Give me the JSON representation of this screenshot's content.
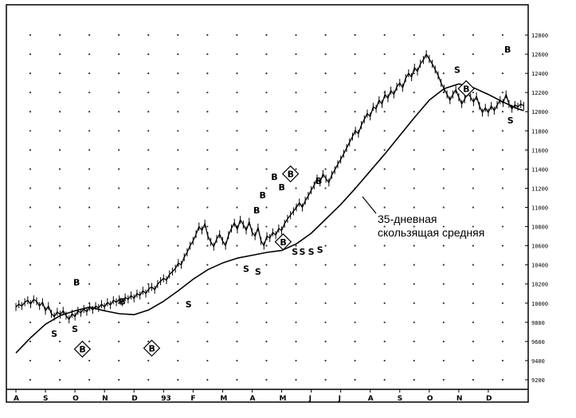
{
  "chart_data": {
    "type": "line",
    "title": "",
    "xlabel": "",
    "ylabel": "",
    "x_tick_labels": [
      "A",
      "S",
      "O",
      "N",
      "D",
      "93",
      "F",
      "M",
      "A",
      "M",
      "J",
      "J",
      "A",
      "S",
      "O",
      "N",
      "D"
    ],
    "y_tick_labels": [
      "9200",
      "9400",
      "9600",
      "9800",
      "10000",
      "10200",
      "10400",
      "10600",
      "10800",
      "11000",
      "11200",
      "11400",
      "11600",
      "11800",
      "12000",
      "12200",
      "12400",
      "12600",
      "12800"
    ],
    "ylim": [
      9100,
      12900
    ],
    "grid": true,
    "annotation": {
      "text_lines": [
        "35-дневная",
        "скользящая средняя"
      ]
    },
    "series": [
      {
        "role": "price",
        "points": [
          [
            0,
            9960
          ],
          [
            0.1,
            9990
          ],
          [
            0.2,
            9970
          ],
          [
            0.3,
            10010
          ],
          [
            0.4,
            10030
          ],
          [
            0.5,
            9990
          ],
          [
            0.6,
            10040
          ],
          [
            0.7,
            10020
          ],
          [
            0.8,
            9970
          ],
          [
            0.9,
            10010
          ],
          [
            1.0,
            9920
          ],
          [
            1.1,
            9970
          ],
          [
            1.2,
            9890
          ],
          [
            1.3,
            9860
          ],
          [
            1.4,
            9910
          ],
          [
            1.5,
            9880
          ],
          [
            1.6,
            9920
          ],
          [
            1.7,
            9870
          ],
          [
            1.8,
            9830
          ],
          [
            1.9,
            9890
          ],
          [
            2.0,
            9860
          ],
          [
            2.1,
            9920
          ],
          [
            2.2,
            9900
          ],
          [
            2.3,
            9940
          ],
          [
            2.4,
            9910
          ],
          [
            2.5,
            9960
          ],
          [
            2.6,
            9930
          ],
          [
            2.7,
            9970
          ],
          [
            2.8,
            9950
          ],
          [
            2.9,
            9990
          ],
          [
            3.0,
            9960
          ],
          [
            3.1,
            10010
          ],
          [
            3.2,
            9980
          ],
          [
            3.3,
            10030
          ],
          [
            3.4,
            10010
          ],
          [
            3.5,
            10040
          ],
          [
            3.6,
            10010
          ],
          [
            3.7,
            10060
          ],
          [
            3.8,
            10040
          ],
          [
            3.9,
            10080
          ],
          [
            4.0,
            10050
          ],
          [
            4.1,
            10100
          ],
          [
            4.2,
            10080
          ],
          [
            4.3,
            10130
          ],
          [
            4.4,
            10100
          ],
          [
            4.5,
            10150
          ],
          [
            4.6,
            10170
          ],
          [
            4.7,
            10140
          ],
          [
            4.8,
            10200
          ],
          [
            4.9,
            10230
          ],
          [
            5.0,
            10260
          ],
          [
            5.1,
            10240
          ],
          [
            5.2,
            10300
          ],
          [
            5.3,
            10330
          ],
          [
            5.4,
            10360
          ],
          [
            5.5,
            10420
          ],
          [
            5.6,
            10400
          ],
          [
            5.7,
            10480
          ],
          [
            5.8,
            10530
          ],
          [
            5.9,
            10600
          ],
          [
            6.0,
            10650
          ],
          [
            6.1,
            10720
          ],
          [
            6.2,
            10800
          ],
          [
            6.3,
            10760
          ],
          [
            6.4,
            10830
          ],
          [
            6.5,
            10700
          ],
          [
            6.6,
            10640
          ],
          [
            6.7,
            10590
          ],
          [
            6.8,
            10670
          ],
          [
            6.9,
            10720
          ],
          [
            7.0,
            10650
          ],
          [
            7.1,
            10600
          ],
          [
            7.2,
            10710
          ],
          [
            7.3,
            10780
          ],
          [
            7.4,
            10840
          ],
          [
            7.5,
            10770
          ],
          [
            7.6,
            10870
          ],
          [
            7.7,
            10820
          ],
          [
            7.8,
            10760
          ],
          [
            7.9,
            10850
          ],
          [
            8.0,
            10740
          ],
          [
            8.1,
            10700
          ],
          [
            8.2,
            10790
          ],
          [
            8.3,
            10650
          ],
          [
            8.4,
            10600
          ],
          [
            8.5,
            10700
          ],
          [
            8.6,
            10680
          ],
          [
            8.7,
            10740
          ],
          [
            8.8,
            10710
          ],
          [
            8.9,
            10780
          ],
          [
            9.0,
            10760
          ],
          [
            9.1,
            10830
          ],
          [
            9.2,
            10880
          ],
          [
            9.3,
            10920
          ],
          [
            9.4,
            10960
          ],
          [
            9.5,
            11000
          ],
          [
            9.6,
            11050
          ],
          [
            9.7,
            11000
          ],
          [
            9.8,
            11070
          ],
          [
            9.9,
            11120
          ],
          [
            10.0,
            11180
          ],
          [
            10.1,
            11230
          ],
          [
            10.2,
            11300
          ],
          [
            10.3,
            11260
          ],
          [
            10.4,
            11350
          ],
          [
            10.5,
            11300
          ],
          [
            10.6,
            11260
          ],
          [
            10.7,
            11340
          ],
          [
            10.8,
            11390
          ],
          [
            10.9,
            11450
          ],
          [
            11.0,
            11500
          ],
          [
            11.1,
            11560
          ],
          [
            11.2,
            11620
          ],
          [
            11.3,
            11680
          ],
          [
            11.4,
            11740
          ],
          [
            11.5,
            11800
          ],
          [
            11.6,
            11770
          ],
          [
            11.7,
            11860
          ],
          [
            11.8,
            11920
          ],
          [
            11.9,
            11980
          ],
          [
            12.0,
            11950
          ],
          [
            12.1,
            12050
          ],
          [
            12.2,
            12030
          ],
          [
            12.3,
            12120
          ],
          [
            12.4,
            12080
          ],
          [
            12.5,
            12180
          ],
          [
            12.6,
            12140
          ],
          [
            12.7,
            12220
          ],
          [
            12.8,
            12180
          ],
          [
            12.9,
            12260
          ],
          [
            13.0,
            12300
          ],
          [
            13.1,
            12250
          ],
          [
            13.2,
            12350
          ],
          [
            13.3,
            12400
          ],
          [
            13.4,
            12360
          ],
          [
            13.5,
            12460
          ],
          [
            13.6,
            12420
          ],
          [
            13.7,
            12500
          ],
          [
            13.8,
            12540
          ],
          [
            13.9,
            12600
          ],
          [
            14.0,
            12550
          ],
          [
            14.1,
            12500
          ],
          [
            14.2,
            12440
          ],
          [
            14.3,
            12380
          ],
          [
            14.4,
            12300
          ],
          [
            14.5,
            12240
          ],
          [
            14.6,
            12180
          ],
          [
            14.7,
            12120
          ],
          [
            14.8,
            12180
          ],
          [
            14.9,
            12230
          ],
          [
            15.0,
            12150
          ],
          [
            15.1,
            12080
          ],
          [
            15.2,
            12130
          ],
          [
            15.3,
            12200
          ],
          [
            15.4,
            12150
          ],
          [
            15.5,
            12100
          ],
          [
            15.6,
            12160
          ],
          [
            15.7,
            12060
          ],
          [
            15.8,
            11990
          ],
          [
            15.9,
            12040
          ],
          [
            16.0,
            11990
          ],
          [
            16.1,
            12060
          ],
          [
            16.2,
            12010
          ],
          [
            16.3,
            12070
          ],
          [
            16.4,
            12120
          ],
          [
            16.5,
            12090
          ],
          [
            16.6,
            12180
          ],
          [
            16.7,
            12080
          ],
          [
            16.8,
            12030
          ],
          [
            16.9,
            12070
          ],
          [
            17.0,
            12050
          ],
          [
            17.1,
            12080
          ],
          [
            17.2,
            12060
          ]
        ]
      },
      {
        "role": "moving-average",
        "points": [
          [
            0,
            9480
          ],
          [
            0.5,
            9640
          ],
          [
            1.0,
            9780
          ],
          [
            1.5,
            9870
          ],
          [
            2.0,
            9920
          ],
          [
            2.5,
            9960
          ],
          [
            3.0,
            9920
          ],
          [
            3.5,
            9890
          ],
          [
            4.0,
            9880
          ],
          [
            4.5,
            9930
          ],
          [
            5.0,
            10020
          ],
          [
            5.5,
            10130
          ],
          [
            6.0,
            10250
          ],
          [
            6.5,
            10350
          ],
          [
            7.0,
            10420
          ],
          [
            7.5,
            10470
          ],
          [
            8.0,
            10500
          ],
          [
            8.5,
            10530
          ],
          [
            9.0,
            10550
          ],
          [
            9.5,
            10620
          ],
          [
            10.0,
            10730
          ],
          [
            10.5,
            10880
          ],
          [
            11.0,
            11030
          ],
          [
            11.5,
            11200
          ],
          [
            12.0,
            11380
          ],
          [
            12.5,
            11560
          ],
          [
            13.0,
            11750
          ],
          [
            13.5,
            11940
          ],
          [
            14.0,
            12120
          ],
          [
            14.5,
            12240
          ],
          [
            15.0,
            12290
          ],
          [
            15.5,
            12250
          ],
          [
            16.0,
            12180
          ],
          [
            16.5,
            12100
          ],
          [
            17.0,
            12030
          ],
          [
            17.2,
            12010
          ]
        ]
      }
    ],
    "signals": [
      {
        "label": "B",
        "x": 2.05,
        "y": 10220,
        "boxed": false
      },
      {
        "label": "S",
        "x": 1.3,
        "y": 9680,
        "boxed": false
      },
      {
        "label": "S",
        "x": 2.0,
        "y": 9730,
        "boxed": false
      },
      {
        "label": "B",
        "x": 2.25,
        "y": 9520,
        "boxed": true
      },
      {
        "label": "B",
        "x": 3.6,
        "y": 10020,
        "boxed": false
      },
      {
        "label": "B",
        "x": 4.6,
        "y": 9530,
        "boxed": true
      },
      {
        "label": "S",
        "x": 5.85,
        "y": 9990,
        "boxed": false
      },
      {
        "label": "S",
        "x": 7.8,
        "y": 10360,
        "boxed": false
      },
      {
        "label": "S",
        "x": 8.2,
        "y": 10330,
        "boxed": false
      },
      {
        "label": "B",
        "x": 8.15,
        "y": 10970,
        "boxed": false
      },
      {
        "label": "B",
        "x": 8.35,
        "y": 11130,
        "boxed": false
      },
      {
        "label": "B",
        "x": 8.75,
        "y": 11320,
        "boxed": false
      },
      {
        "label": "B",
        "x": 9.0,
        "y": 11210,
        "boxed": false
      },
      {
        "label": "B",
        "x": 9.3,
        "y": 11350,
        "boxed": true
      },
      {
        "label": "B",
        "x": 9.05,
        "y": 10640,
        "boxed": true
      },
      {
        "label": "S",
        "x": 9.45,
        "y": 10540,
        "boxed": false
      },
      {
        "label": "S",
        "x": 9.7,
        "y": 10540,
        "boxed": false
      },
      {
        "label": "S",
        "x": 10.0,
        "y": 10540,
        "boxed": false
      },
      {
        "label": "B",
        "x": 10.25,
        "y": 11280,
        "boxed": false
      },
      {
        "label": "S",
        "x": 10.3,
        "y": 10560,
        "boxed": false
      },
      {
        "label": "S",
        "x": 14.95,
        "y": 12440,
        "boxed": false
      },
      {
        "label": "B",
        "x": 15.25,
        "y": 12240,
        "boxed": true
      },
      {
        "label": "B",
        "x": 16.65,
        "y": 12650,
        "boxed": false
      },
      {
        "label": "S",
        "x": 16.75,
        "y": 11910,
        "boxed": false
      }
    ]
  }
}
